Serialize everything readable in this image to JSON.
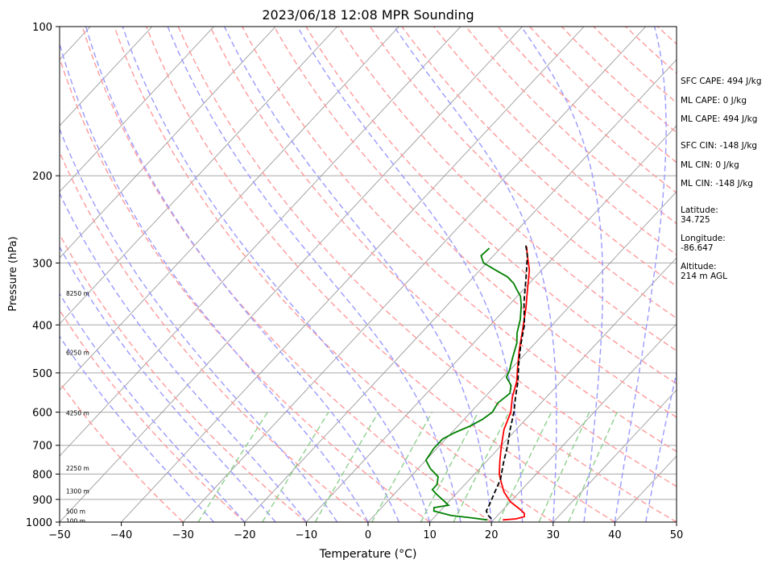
{
  "chart_data": {
    "type": "line",
    "title": "2023/06/18 12:08 MPR Sounding",
    "xlabel": "Temperature (°C)",
    "ylabel": "Pressure (hPa)",
    "xlim": [
      -50,
      50
    ],
    "ylim": [
      1000,
      100
    ],
    "y_scale": "log",
    "x_ticks": [
      "−50",
      "−40",
      "−30",
      "−20",
      "−10",
      "0",
      "10",
      "20",
      "30",
      "40",
      "50"
    ],
    "y_ticks": [
      "100",
      "200",
      "300",
      "400",
      "500",
      "600",
      "700",
      "800",
      "900",
      "1000"
    ],
    "grid": true,
    "height_labels": [
      {
        "text": "100 m",
        "p": 994
      },
      {
        "text": "500 m",
        "p": 950
      },
      {
        "text": "1300 m",
        "p": 866
      },
      {
        "text": "2250 m",
        "p": 778
      },
      {
        "text": "4250 m",
        "p": 602
      },
      {
        "text": "6250 m",
        "p": 455
      },
      {
        "text": "8250 m",
        "p": 345
      }
    ],
    "series": [
      {
        "kind": "temperature",
        "color": "#ff0000",
        "dash": false,
        "points": [
          [
            21.5,
            990
          ],
          [
            23.5,
            985
          ],
          [
            24.5,
            975
          ],
          [
            24.0,
            960
          ],
          [
            22.5,
            940
          ],
          [
            20.0,
            910
          ],
          [
            17.5,
            870
          ],
          [
            15.5,
            830
          ],
          [
            14.0,
            800
          ],
          [
            12.0,
            750
          ],
          [
            10.0,
            700
          ],
          [
            8.0,
            650
          ],
          [
            6.5,
            600
          ],
          [
            4.5,
            560
          ],
          [
            2.8,
            520
          ],
          [
            1.0,
            490
          ],
          [
            -1.5,
            450
          ],
          [
            -4.0,
            410
          ],
          [
            -6.8,
            370
          ],
          [
            -9.3,
            340
          ],
          [
            -12.0,
            310
          ],
          [
            -14.5,
            290
          ],
          [
            -16.0,
            278
          ]
        ]
      },
      {
        "kind": "dewpoint",
        "color": "#008000",
        "dash": false,
        "points": [
          [
            19.0,
            990
          ],
          [
            16.0,
            980
          ],
          [
            12.5,
            970
          ],
          [
            9.0,
            950
          ],
          [
            8.5,
            935
          ],
          [
            10.5,
            925
          ],
          [
            9.0,
            905
          ],
          [
            7.0,
            880
          ],
          [
            5.5,
            860
          ],
          [
            5.5,
            840
          ],
          [
            4.5,
            810
          ],
          [
            2.0,
            780
          ],
          [
            0.0,
            750
          ],
          [
            -0.5,
            710
          ],
          [
            -0.5,
            680
          ],
          [
            0.5,
            660
          ],
          [
            2.0,
            640
          ],
          [
            3.0,
            620
          ],
          [
            3.5,
            600
          ],
          [
            3.0,
            575
          ],
          [
            3.5,
            550
          ],
          [
            2.5,
            530
          ],
          [
            0.5,
            510
          ],
          [
            0.0,
            495
          ],
          [
            -1.5,
            465
          ],
          [
            -3.0,
            435
          ],
          [
            -4.5,
            415
          ],
          [
            -6.0,
            390
          ],
          [
            -8.0,
            365
          ],
          [
            -9.5,
            350
          ],
          [
            -11.0,
            340
          ],
          [
            -12.5,
            330
          ],
          [
            -14.5,
            320
          ],
          [
            -17.5,
            310
          ],
          [
            -20.5,
            300
          ],
          [
            -22.0,
            290
          ],
          [
            -21.8,
            280
          ]
        ]
      },
      {
        "kind": "parcel",
        "color": "#000000",
        "dash": true,
        "points": [
          [
            19.5,
            985
          ],
          [
            18.5,
            970
          ],
          [
            17.5,
            950
          ],
          [
            17.0,
            920
          ],
          [
            16.2,
            880
          ],
          [
            15.0,
            820
          ],
          [
            13.0,
            760
          ],
          [
            11.0,
            700
          ],
          [
            9.0,
            650
          ],
          [
            7.0,
            600
          ],
          [
            5.0,
            560
          ],
          [
            3.0,
            520
          ],
          [
            0.5,
            480
          ],
          [
            -2.0,
            440
          ],
          [
            -4.5,
            400
          ],
          [
            -8.0,
            360
          ],
          [
            -11.5,
            320
          ],
          [
            -14.5,
            290
          ],
          [
            -16.5,
            275
          ]
        ]
      }
    ]
  },
  "side_panel": {
    "sfc_cape": "SFC CAPE: 494 J/kg",
    "ml_cape_1": "ML CAPE: 0 J/kg",
    "ml_cape_2": "ML CAPE: 494 J/kg",
    "sfc_cin": "SFC CIN: -148 J/kg",
    "ml_cin_1": "ML CIN: 0 J/kg",
    "ml_cin_2": "ML CIN: -148 J/kg",
    "lat_label": "Latitude:",
    "lat_value": "34.725",
    "lon_label": "Longitude:",
    "lon_value": "-86.647",
    "alt_label": "Altitude:",
    "alt_value": "214 m AGL"
  },
  "colors": {
    "dry_adiabat": "#ff9a9a",
    "moist_adiabat": "#9a9aff",
    "mixing_ratio": "#8fcf8f",
    "isotherm": "#9a9a9a",
    "isobar": "#a8a8a8"
  }
}
